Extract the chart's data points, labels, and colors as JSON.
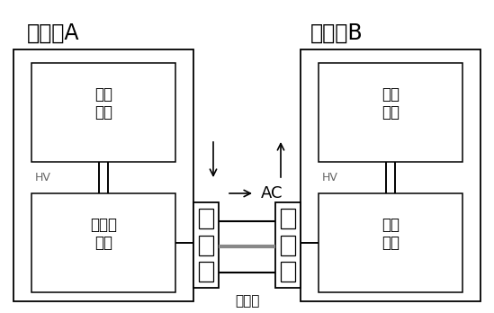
{
  "title_left": "放电车A",
  "title_right": "受电车B",
  "bg_color": "#ffffff",
  "ac_label": "AC",
  "gun_label": "放电枪",
  "hv_label": "HV",
  "battery_label_left": "动力\n电池",
  "battery_label_right": "动力\n电池",
  "module_label_left": "充放电\n模块",
  "module_label_right": "充电\n模块",
  "font_size_title": 17,
  "font_size_box": 12,
  "font_size_hv": 9,
  "font_size_ac": 13,
  "font_size_gun": 11
}
